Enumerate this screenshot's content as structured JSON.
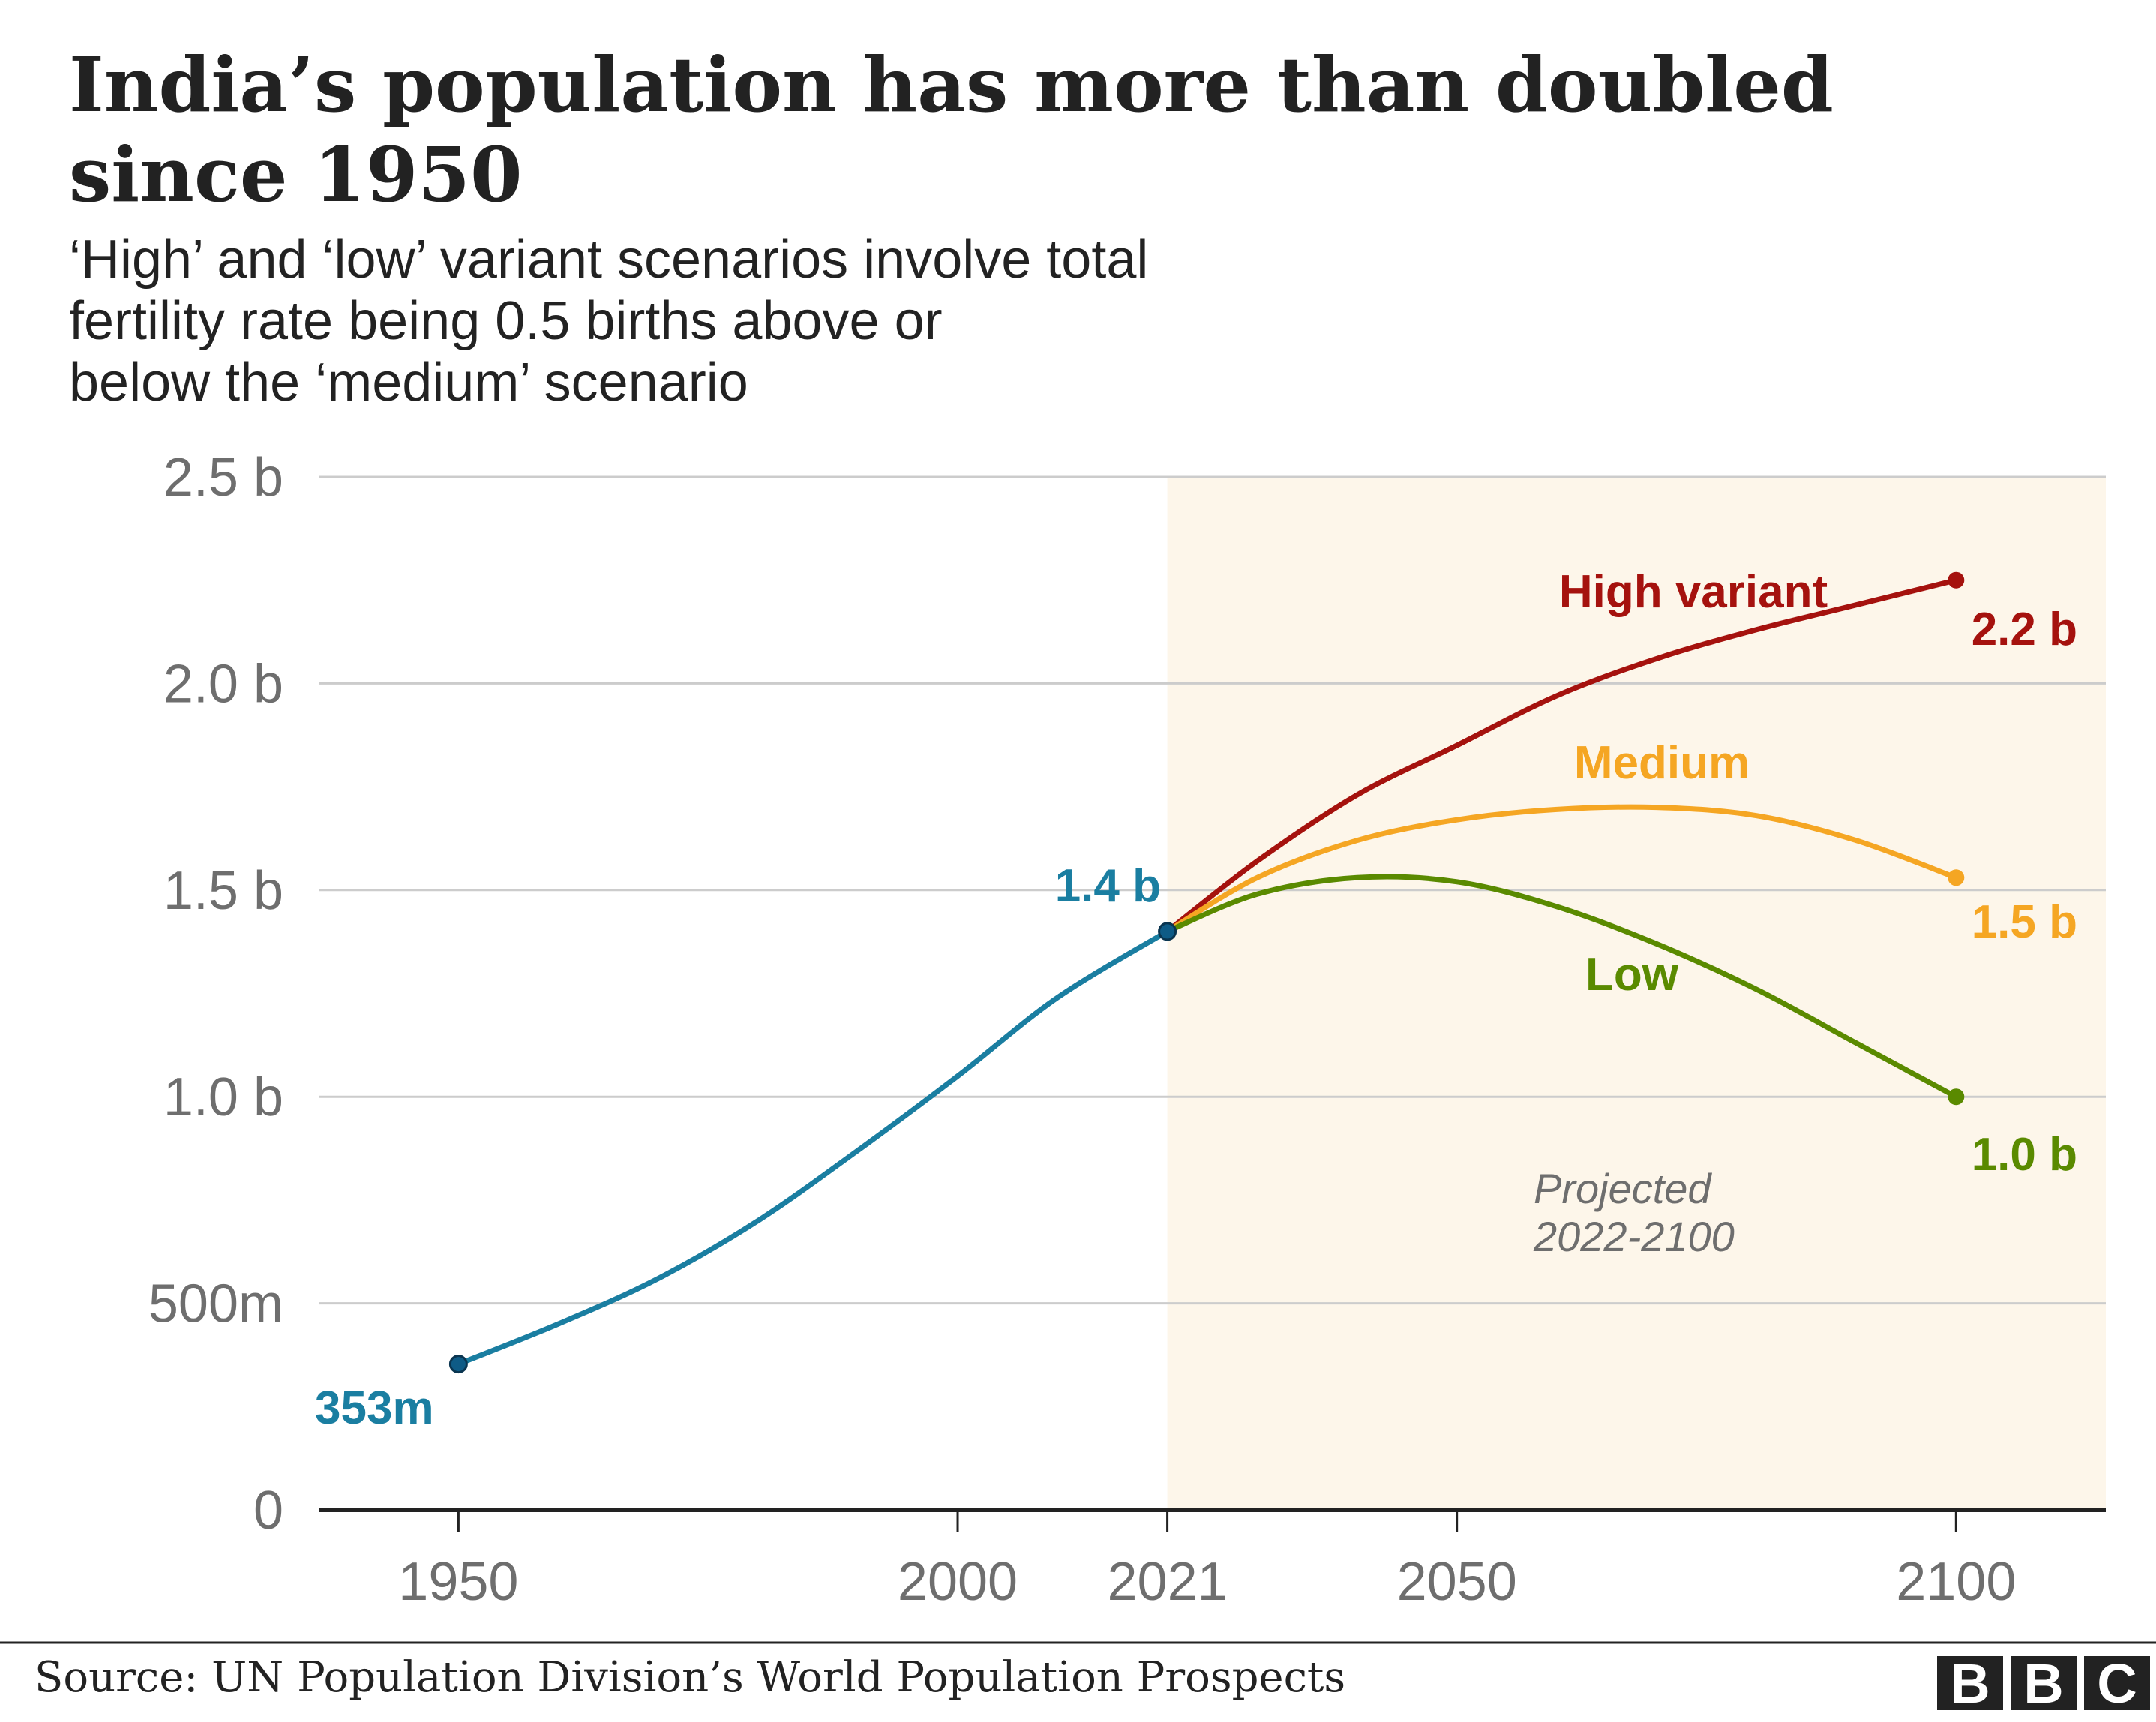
{
  "header": {
    "title_line1": "India’s population has more than doubled",
    "title_line2": "since 1950",
    "subtitle_line1": "‘High’ and ‘low’ variant scenarios involve total",
    "subtitle_line2": "fertility rate being 0.5 births above or",
    "subtitle_line3": "below the ‘medium’ scenario"
  },
  "footer": {
    "source": "Source: UN Population Division’s World Population Prospects",
    "logo_letters": [
      "B",
      "B",
      "C"
    ]
  },
  "colors": {
    "historical": "#1a7ea1",
    "high": "#a5120e",
    "medium": "#f5a623",
    "low": "#5a8a00",
    "projection_band": "#fdf6ea",
    "grid": "#cccccc",
    "axis": "#222222",
    "dot_historical": "#0e5b86"
  },
  "chart_data": {
    "type": "line",
    "xlim": [
      1936,
      2115
    ],
    "ylim": [
      0,
      2.5
    ],
    "grid": true,
    "x_ticks": [
      1950,
      2000,
      2021,
      2050,
      2100
    ],
    "x_tick_labels": [
      "1950",
      "2000",
      "2021",
      "2050",
      "2100"
    ],
    "y_ticks": [
      0,
      0.5,
      1.0,
      1.5,
      2.0,
      2.5
    ],
    "y_tick_labels": [
      "0",
      "500m",
      "1.0 b",
      "1.5 b",
      "2.0 b",
      "2.5 b"
    ],
    "projection": {
      "start": 2021,
      "end": 2115,
      "label_line1": "Projected",
      "label_line2": "2022-2100"
    },
    "series": [
      {
        "key": "historical",
        "x": [
          1950,
          1960,
          1970,
          1980,
          1990,
          2000,
          2010,
          2021
        ],
        "y": [
          0.353,
          0.45,
          0.56,
          0.7,
          0.87,
          1.05,
          1.24,
          1.4
        ],
        "start_label": "353m",
        "end_label": "1.4 b"
      },
      {
        "key": "high",
        "name": "High variant",
        "x": [
          2021,
          2030,
          2040,
          2050,
          2060,
          2070,
          2080,
          2090,
          2100
        ],
        "y": [
          1.4,
          1.57,
          1.73,
          1.85,
          1.97,
          2.06,
          2.13,
          2.19,
          2.25
        ],
        "end_label": "2.2 b"
      },
      {
        "key": "medium",
        "name": "Medium",
        "x": [
          2021,
          2030,
          2040,
          2050,
          2060,
          2070,
          2080,
          2090,
          2100
        ],
        "y": [
          1.4,
          1.53,
          1.62,
          1.67,
          1.695,
          1.7,
          1.68,
          1.62,
          1.53
        ],
        "end_label": "1.5 b"
      },
      {
        "key": "low",
        "name": "Low",
        "x": [
          2021,
          2030,
          2040,
          2050,
          2060,
          2070,
          2080,
          2090,
          2100
        ],
        "y": [
          1.4,
          1.49,
          1.53,
          1.52,
          1.46,
          1.37,
          1.26,
          1.13,
          1.0
        ],
        "end_label": "1.0 b"
      }
    ]
  }
}
